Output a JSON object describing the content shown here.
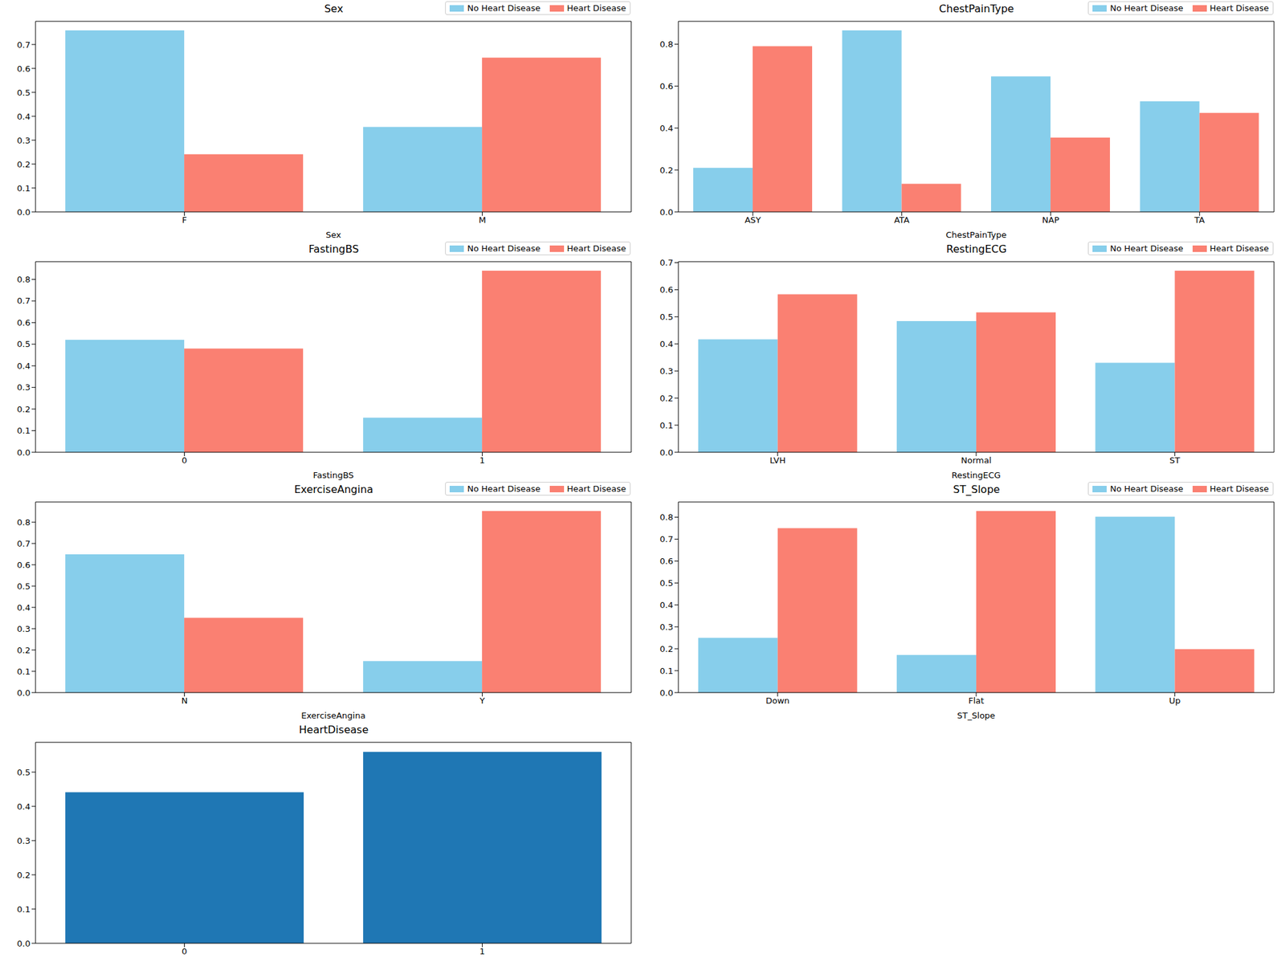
{
  "chart_data": [
    {
      "type": "bar",
      "title": "Sex",
      "x_label": "Sex",
      "categories": [
        "F",
        "M"
      ],
      "series": [
        {
          "name": "No Heart Disease",
          "color": "#87ceeb",
          "values": [
            0.759,
            0.355
          ]
        },
        {
          "name": "Heart Disease",
          "color": "#fa8072",
          "values": [
            0.241,
            0.645
          ]
        }
      ],
      "ylim": [
        0,
        0.797
      ],
      "yticks": [
        {
          "value": 0,
          "label": "0.0"
        },
        0.1,
        0.2,
        0.3,
        0.4,
        0.5,
        0.6,
        0.7
      ],
      "legend": "upper right"
    },
    {
      "type": "bar",
      "title": "ChestPainType",
      "x_label": "ChestPainType",
      "categories": [
        "ASY",
        "ATA",
        "NAP",
        "TA"
      ],
      "series": [
        {
          "name": "No Heart Disease",
          "color": "#87ceeb",
          "values": [
            0.21,
            0.866,
            0.646,
            0.528
          ]
        },
        {
          "name": "Heart Disease",
          "color": "#fa8072",
          "values": [
            0.79,
            0.134,
            0.354,
            0.472
          ]
        }
      ],
      "ylim": [
        0,
        0.909
      ],
      "yticks": [
        {
          "value": 0,
          "label": "0.0"
        },
        0.2,
        0.4,
        0.6,
        0.8
      ],
      "legend": "upper right"
    },
    {
      "type": "bar",
      "title": "FastingBS",
      "x_label": "FastingBS",
      "categories": [
        "0",
        "1"
      ],
      "series": [
        {
          "name": "No Heart Disease",
          "color": "#87ceeb",
          "values": [
            0.52,
            0.16
          ]
        },
        {
          "name": "Heart Disease",
          "color": "#fa8072",
          "values": [
            0.48,
            0.84
          ]
        }
      ],
      "ylim": [
        0,
        0.882
      ],
      "yticks": [
        {
          "value": 0,
          "label": "0.0"
        },
        0.1,
        0.2,
        0.3,
        0.4,
        0.5,
        0.6,
        0.7,
        0.8
      ],
      "legend": "upper right"
    },
    {
      "type": "bar",
      "title": "RestingECG",
      "x_label": "RestingECG",
      "categories": [
        "LVH",
        "Normal",
        "ST"
      ],
      "series": [
        {
          "name": "No Heart Disease",
          "color": "#87ceeb",
          "values": [
            0.417,
            0.484,
            0.33
          ]
        },
        {
          "name": "Heart Disease",
          "color": "#fa8072",
          "values": [
            0.583,
            0.516,
            0.67
          ]
        }
      ],
      "ylim": [
        0,
        0.7035
      ],
      "yticks": [
        {
          "value": 0,
          "label": "0.0"
        },
        0.1,
        0.2,
        0.3,
        0.4,
        0.5,
        0.6,
        0.7
      ],
      "legend": "upper right"
    },
    {
      "type": "bar",
      "title": "ExerciseAngina",
      "x_label": "ExerciseAngina",
      "categories": [
        "N",
        "Y"
      ],
      "series": [
        {
          "name": "No Heart Disease",
          "color": "#87ceeb",
          "values": [
            0.649,
            0.148
          ]
        },
        {
          "name": "Heart Disease",
          "color": "#fa8072",
          "values": [
            0.351,
            0.852
          ]
        }
      ],
      "ylim": [
        0,
        0.8946
      ],
      "yticks": [
        {
          "value": 0,
          "label": "0.0"
        },
        0.1,
        0.2,
        0.3,
        0.4,
        0.5,
        0.6,
        0.7,
        0.8
      ],
      "legend": "upper right"
    },
    {
      "type": "bar",
      "title": "ST_Slope",
      "x_label": "ST_Slope",
      "categories": [
        "Down",
        "Flat",
        "Up"
      ],
      "series": [
        {
          "name": "No Heart Disease",
          "color": "#87ceeb",
          "values": [
            0.25,
            0.172,
            0.802
          ]
        },
        {
          "name": "Heart Disease",
          "color": "#fa8072",
          "values": [
            0.75,
            0.828,
            0.198
          ]
        }
      ],
      "ylim": [
        0,
        0.8694
      ],
      "yticks": [
        {
          "value": 0,
          "label": "0.0"
        },
        0.1,
        0.2,
        0.3,
        0.4,
        0.5,
        0.6,
        0.7,
        0.8
      ],
      "legend": "upper right"
    },
    {
      "type": "bar",
      "title": "HeartDisease",
      "categories": [
        "0",
        "1"
      ],
      "values": [
        0.441,
        0.559
      ],
      "color": "#1f77b4",
      "ylim": [
        0,
        0.587
      ],
      "yticks": [
        {
          "value": 0,
          "label": "0.0"
        },
        0.1,
        0.2,
        0.3,
        0.4,
        0.5
      ]
    }
  ]
}
